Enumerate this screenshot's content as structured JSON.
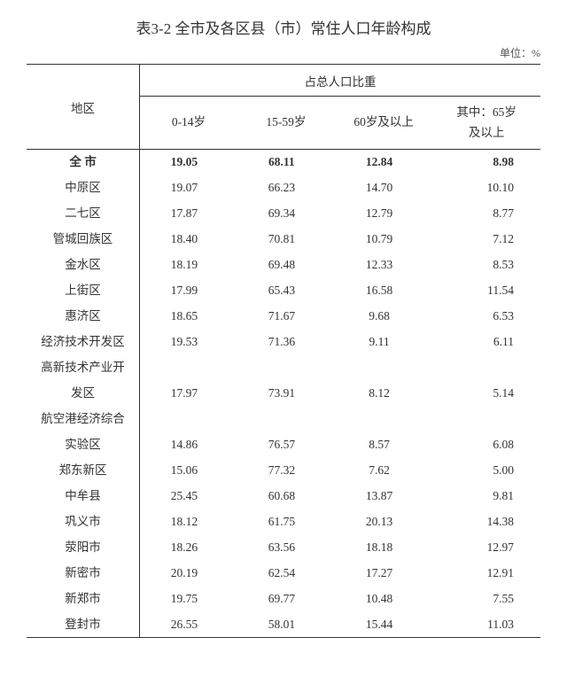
{
  "title": "表3-2 全市及各区县（市）常住人口年龄构成",
  "unit": "单位：%",
  "header": {
    "region": "地区",
    "group": "占总人口比重",
    "c1": "0-14岁",
    "c2": "15-59岁",
    "c3": "60岁及以上",
    "c4_line1": "其中：65岁",
    "c4_line2": "及以上"
  },
  "rows": [
    {
      "name_lines": [
        "全 市"
      ],
      "values": [
        "19.05",
        "68.11",
        "12.84",
        "8.98"
      ],
      "bold": true
    },
    {
      "name_lines": [
        "中原区"
      ],
      "values": [
        "19.07",
        "66.23",
        "14.70",
        "10.10"
      ]
    },
    {
      "name_lines": [
        "二七区"
      ],
      "values": [
        "17.87",
        "69.34",
        "12.79",
        "8.77"
      ]
    },
    {
      "name_lines": [
        "管城回族区"
      ],
      "values": [
        "18.40",
        "70.81",
        "10.79",
        "7.12"
      ]
    },
    {
      "name_lines": [
        "金水区"
      ],
      "values": [
        "18.19",
        "69.48",
        "12.33",
        "8.53"
      ]
    },
    {
      "name_lines": [
        "上街区"
      ],
      "values": [
        "17.99",
        "65.43",
        "16.58",
        "11.54"
      ]
    },
    {
      "name_lines": [
        "惠济区"
      ],
      "values": [
        "18.65",
        "71.67",
        "9.68",
        "6.53"
      ]
    },
    {
      "name_lines": [
        "经济技术开发区"
      ],
      "values": [
        "19.53",
        "71.36",
        "9.11",
        "6.11"
      ]
    },
    {
      "name_lines": [
        "高新技术产业开",
        "发区"
      ],
      "values": [
        "17.97",
        "73.91",
        "8.12",
        "5.14"
      ]
    },
    {
      "name_lines": [
        "航空港经济综合",
        "实验区"
      ],
      "values": [
        "14.86",
        "76.57",
        "8.57",
        "6.08"
      ]
    },
    {
      "name_lines": [
        "郑东新区"
      ],
      "values": [
        "15.06",
        "77.32",
        "7.62",
        "5.00"
      ]
    },
    {
      "name_lines": [
        "中牟县"
      ],
      "values": [
        "25.45",
        "60.68",
        "13.87",
        "9.81"
      ]
    },
    {
      "name_lines": [
        "巩义市"
      ],
      "values": [
        "18.12",
        "61.75",
        "20.13",
        "14.38"
      ]
    },
    {
      "name_lines": [
        "荥阳市"
      ],
      "values": [
        "18.26",
        "63.56",
        "18.18",
        "12.97"
      ]
    },
    {
      "name_lines": [
        "新密市"
      ],
      "values": [
        "20.19",
        "62.54",
        "17.27",
        "12.91"
      ]
    },
    {
      "name_lines": [
        "新郑市"
      ],
      "values": [
        "19.75",
        "69.77",
        "10.48",
        "7.55"
      ]
    },
    {
      "name_lines": [
        "登封市"
      ],
      "values": [
        "26.55",
        "58.01",
        "15.44",
        "11.03"
      ]
    }
  ],
  "style": {
    "font_family": "SimSun",
    "title_fontsize": 17,
    "body_fontsize": 13.5,
    "text_color": "#333333",
    "border_color": "#333333",
    "background_color": "#ffffff",
    "col_widths_pct": [
      22,
      19,
      19,
      19,
      21
    ]
  }
}
